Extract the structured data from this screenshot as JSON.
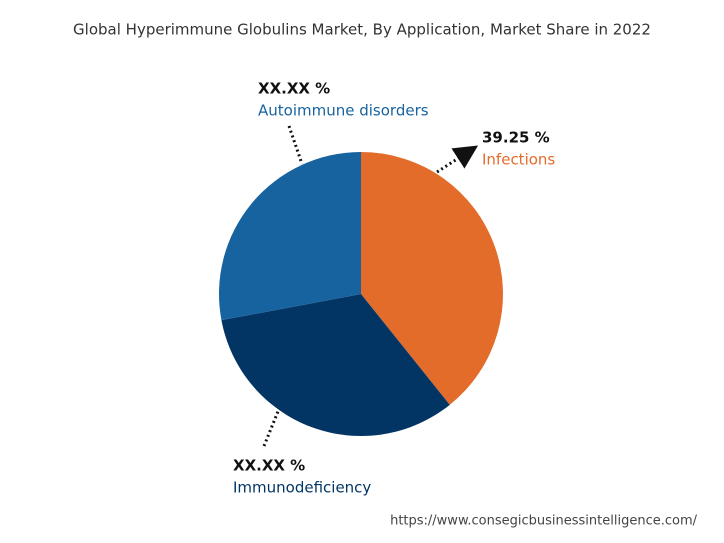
{
  "chart_data": {
    "type": "pie",
    "title": "Global Hyperimmune Globulins Market, By Application, Market Share in 2022",
    "categories": [
      "Infections",
      "Immunodeficiency",
      "Autoimmune disorders"
    ],
    "values": [
      39.25,
      32.8,
      27.95
    ],
    "value_labels": [
      "39.25 %",
      "XX.XX %",
      "XX.XX %"
    ],
    "colors": [
      "#e36c2a",
      "#023564",
      "#1763a0"
    ],
    "source": "https://www.consegicbusinessintelligence.com/"
  }
}
